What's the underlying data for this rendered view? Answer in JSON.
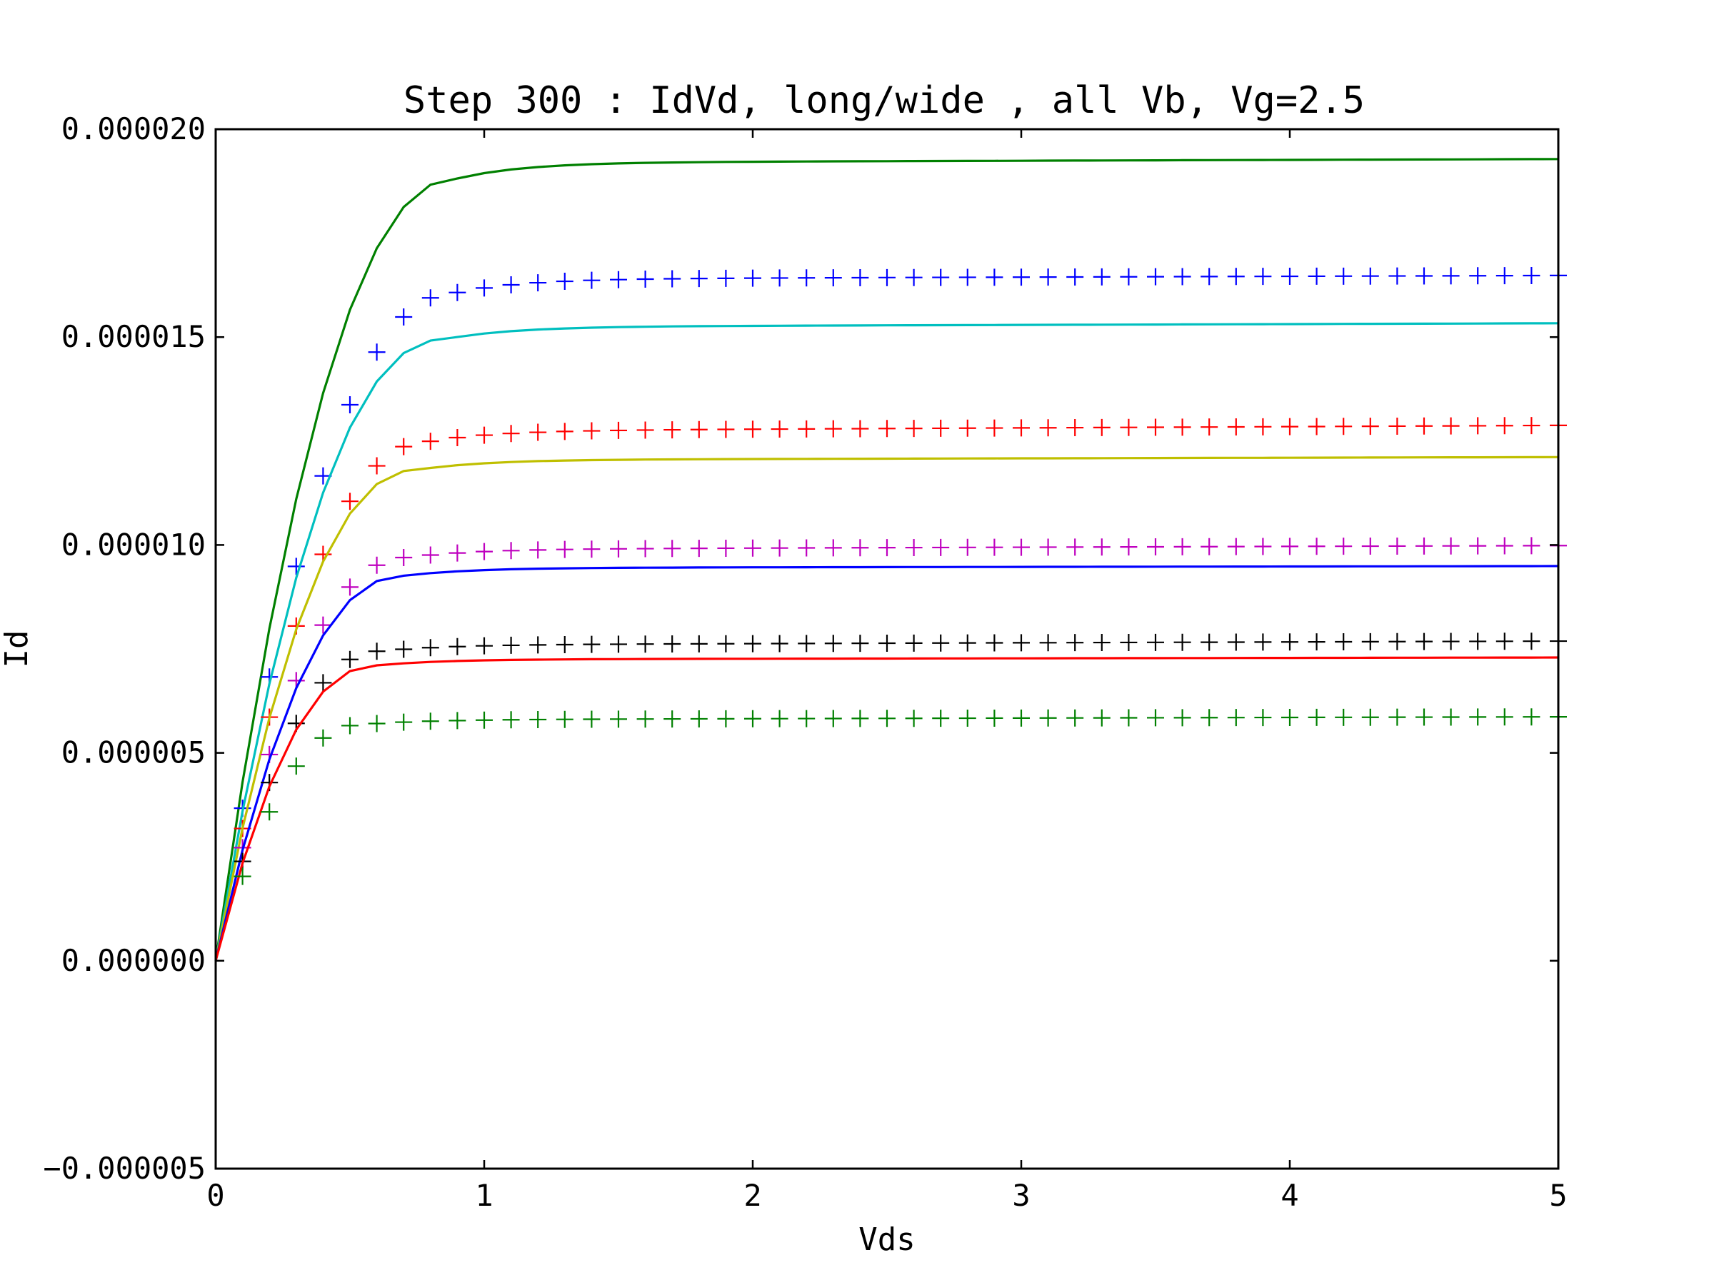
{
  "chart_data": {
    "type": "line",
    "title": "Step 300 : IdVd, long/wide , all Vb, Vg=2.5",
    "xlabel": "Vds",
    "ylabel": "Id",
    "xlim": [
      0,
      5
    ],
    "ylim": [
      -5e-06,
      2e-05
    ],
    "x_ticks": [
      0,
      1,
      2,
      3,
      4,
      5
    ],
    "x_tick_labels": [
      "0",
      "1",
      "2",
      "3",
      "4",
      "5"
    ],
    "y_ticks": [
      -5e-06,
      0.0,
      5e-06,
      1e-05,
      1.5e-05,
      2e-05
    ],
    "y_tick_labels": [
      "−0.000005",
      "0.000000",
      "0.000005",
      "0.000010",
      "0.000015",
      "0.000020"
    ],
    "grid": false,
    "legend": "none",
    "series": [
      {
        "style": "line",
        "color": "#008000",
        "sat": 1.92e-05,
        "slope": 2e-08,
        "vsat": 0.9,
        "shape": 4
      },
      {
        "style": "marker",
        "color": "#0000ff",
        "sat": 1.64e-05,
        "slope": 2e-08,
        "vsat": 0.9,
        "shape": 4
      },
      {
        "style": "line",
        "color": "#00bfbf",
        "sat": 1.525e-05,
        "slope": 2e-08,
        "vsat": 0.85,
        "shape": 4
      },
      {
        "style": "marker",
        "color": "#ff0000",
        "sat": 1.275e-05,
        "slope": 3e-08,
        "vsat": 0.8,
        "shape": 4
      },
      {
        "style": "line",
        "color": "#bfbf00",
        "sat": 1.205e-05,
        "slope": 1.5e-08,
        "vsat": 0.75,
        "shape": 4
      },
      {
        "style": "marker",
        "color": "#bf00bf",
        "sat": 9.9e-06,
        "slope": 2e-08,
        "vsat": 0.72,
        "shape": 4
      },
      {
        "style": "line",
        "color": "#0000ff",
        "sat": 9.45e-06,
        "slope": 1e-08,
        "vsat": 0.7,
        "shape": 4
      },
      {
        "style": "marker",
        "color": "#000000",
        "sat": 7.6e-06,
        "slope": 2e-08,
        "vsat": 0.62,
        "shape": 4
      },
      {
        "style": "line",
        "color": "#ff0000",
        "sat": 7.25e-06,
        "slope": 1e-08,
        "vsat": 0.6,
        "shape": 4
      },
      {
        "style": "marker",
        "color": "#008000",
        "sat": 5.8e-06,
        "slope": 1.5e-08,
        "vsat": 0.55,
        "shape": 4
      }
    ]
  }
}
